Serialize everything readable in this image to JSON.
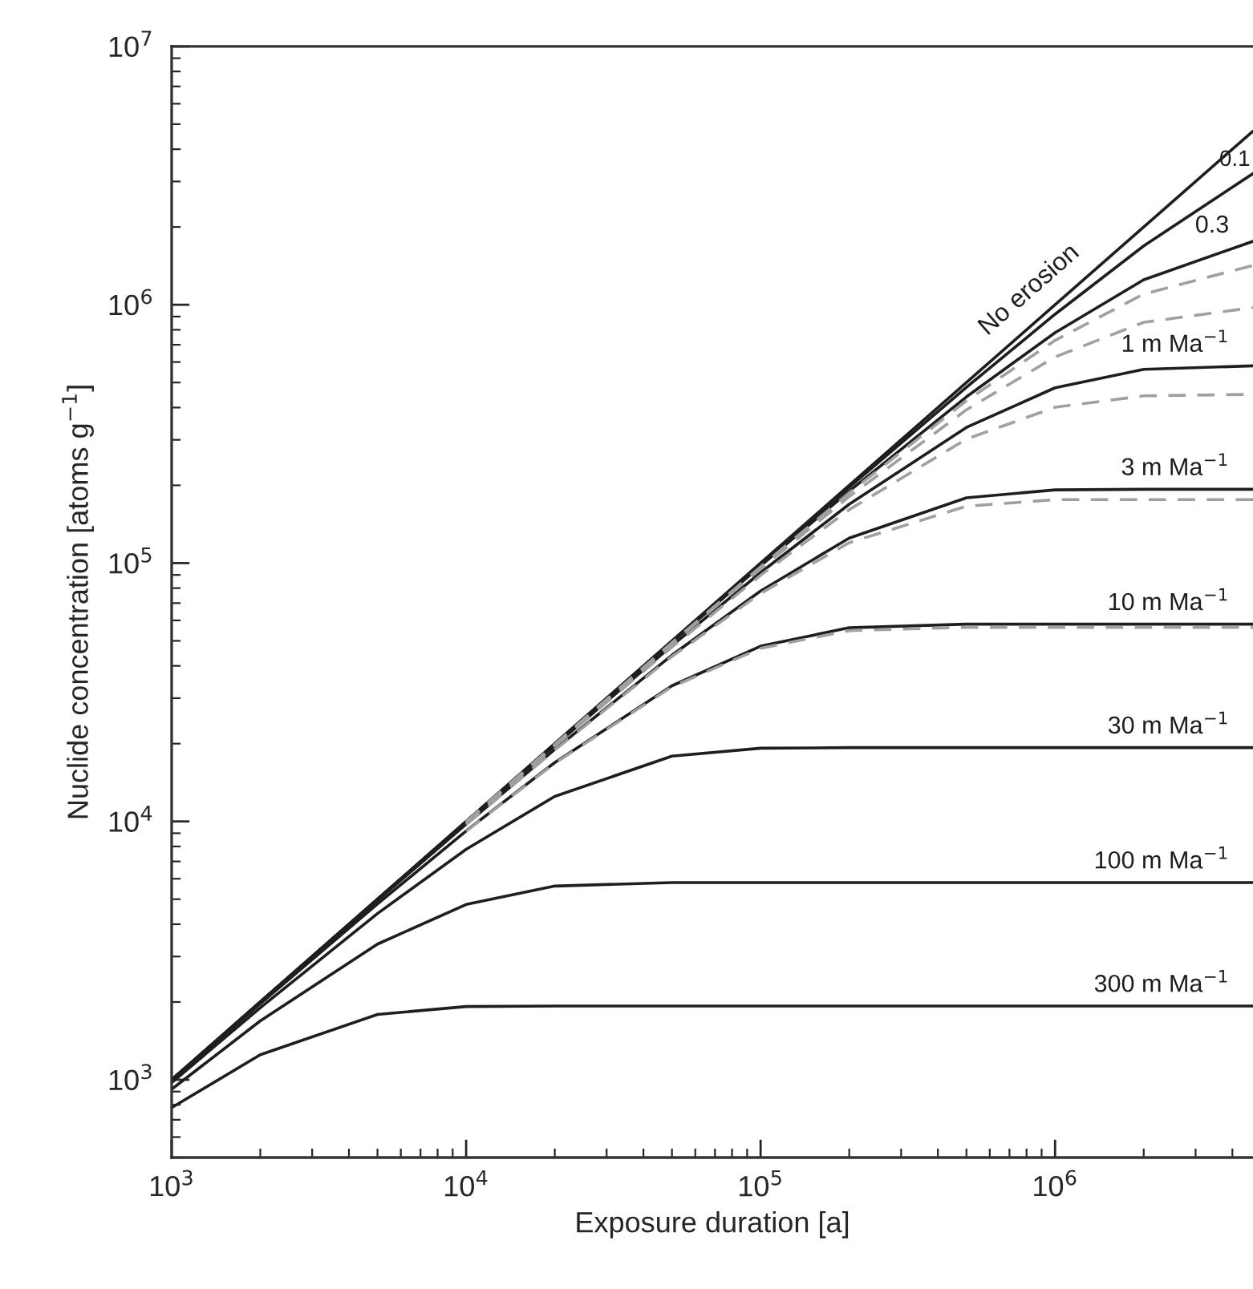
{
  "chart_data": {
    "type": "line",
    "xlabel": "Exposure duration [a]",
    "ylabel": "Nuclide concentration [atoms g$^{−1}$]",
    "log": "xy",
    "xlim": [
      1000,
      4700000
    ],
    "ylim": [
      500,
      10000000
    ],
    "xticks": [
      {
        "value": 1000,
        "label": "10$^{3}$"
      },
      {
        "value": 10000,
        "label": "10$^{4}$"
      },
      {
        "value": 100000,
        "label": "10$^{5}$"
      },
      {
        "value": 1000000,
        "label": "10$^{6}$"
      }
    ],
    "yticks": [
      {
        "value": 1000,
        "label": "10$^{3}$"
      },
      {
        "value": 10000,
        "label": "10$^{4}$"
      },
      {
        "value": 100000,
        "label": "10$^{5}$"
      },
      {
        "value": 1000000,
        "label": "10$^{6}$"
      },
      {
        "value": 10000000,
        "label": "10$^{7}$"
      }
    ],
    "grid": false,
    "x": [
      1000,
      2000,
      5000,
      10000,
      20000,
      50000,
      100000,
      200000,
      500000,
      1000000,
      2000000,
      4700000
    ],
    "series": [
      {
        "color": "#1e1e1e",
        "line_style": "solid",
        "values": [
          1000,
          2000,
          5000,
          10000,
          20000,
          50000,
          100000,
          200000,
          500000,
          1000000,
          2000000,
          4700000
        ]
      },
      {
        "color": "#1e1e1e",
        "line_style": "solid",
        "values": [
          1000,
          2000,
          5000,
          9990,
          19970,
          49800,
          99100,
          196600,
          479000,
          919000,
          1690000,
          3220000
        ]
      },
      {
        "color": "#1e1e1e",
        "line_style": "solid",
        "values": [
          1000,
          2000,
          4990,
          9970,
          19900,
          49400,
          97500,
          190000,
          440000,
          780000,
          1250000,
          1760000
        ]
      },
      {
        "color": "#1e1e1e",
        "line_style": "solid",
        "values": [
          999,
          2000,
          4980,
          9910,
          19660,
          47900,
          91900,
          169000,
          335000,
          477000,
          562000,
          580000
        ]
      },
      {
        "color": "#1e1e1e",
        "line_style": "solid",
        "values": [
          997,
          1990,
          4940,
          9750,
          19000,
          44000,
          78000,
          125000,
          179000,
          192000,
          193000,
          193000
        ]
      },
      {
        "color": "#1e1e1e",
        "line_style": "solid",
        "values": [
          991,
          1970,
          4790,
          9190,
          16900,
          33500,
          47700,
          56200,
          58000,
          58000,
          58000,
          58000
        ]
      },
      {
        "color": "#1e1e1e",
        "line_style": "solid",
        "values": [
          975,
          1900,
          4400,
          7800,
          12500,
          17900,
          19200,
          19300,
          19300,
          19300,
          19300,
          19300
        ]
      },
      {
        "color": "#1e1e1e",
        "line_style": "solid",
        "values": [
          919,
          1690,
          3350,
          4770,
          5620,
          5800,
          5800,
          5800,
          5800,
          5800,
          5800,
          5800
        ]
      },
      {
        "color": "#1e1e1e",
        "line_style": "solid",
        "values": [
          780,
          1250,
          1790,
          1920,
          1930,
          1930,
          1930,
          1930,
          1930,
          1930,
          1930,
          1930
        ]
      },
      {
        "color": "#a0a0a0",
        "line_style": "dashed",
        "x": [
          10000,
          20000,
          50000,
          100000,
          200000,
          500000,
          1000000,
          2000000,
          4700000
        ],
        "values": [
          9970,
          19870,
          49200,
          96700,
          187000,
          425000,
          728000,
          1100000,
          1420000
        ]
      },
      {
        "color": "#a0a0a0",
        "line_style": "dashed",
        "x": [
          10000,
          20000,
          50000,
          100000,
          200000,
          500000,
          1000000,
          2000000,
          4700000
        ],
        "values": [
          9950,
          19800,
          48800,
          95100,
          181000,
          392000,
          628000,
          855000,
          975000
        ]
      },
      {
        "color": "#a0a0a0",
        "line_style": "dashed",
        "x": [
          10000,
          20000,
          50000,
          100000,
          200000,
          500000,
          1000000,
          2000000,
          4700000
        ],
        "values": [
          9890,
          19570,
          47300,
          89700,
          161000,
          302000,
          401000,
          444000,
          450000
        ]
      },
      {
        "color": "#a0a0a0",
        "line_style": "dashed",
        "x": [
          10000,
          20000,
          50000,
          100000,
          200000,
          500000,
          1000000,
          2000000,
          4700000
        ],
        "values": [
          9720,
          18900,
          43500,
          76300,
          120000,
          166000,
          176000,
          176000,
          176000
        ]
      },
      {
        "color": "#a0a0a0",
        "line_style": "dashed",
        "x": [
          10000,
          20000,
          50000,
          100000,
          200000,
          500000,
          1000000,
          2000000,
          4700000
        ],
        "values": [
          9170,
          16800,
          33200,
          46800,
          54800,
          56400,
          56400,
          56400,
          56400
        ]
      }
    ],
    "annotations": [
      {
        "text": "No erosion",
        "x": 950000,
        "y": 950000
      },
      {
        "text": "0.1",
        "x": 4600000,
        "y": 3180000
      },
      {
        "text": "0.3",
        "x": 3900000,
        "y": 1680000
      },
      {
        "text": "1 m Ma$^{−1}$",
        "x": 3900000,
        "y": 580000
      },
      {
        "text": "3 m Ma$^{−1}$",
        "x": 3900000,
        "y": 193000
      },
      {
        "text": "10 m Ma$^{−1}$",
        "x": 3900000,
        "y": 58000
      },
      {
        "text": "30 m Ma$^{−1}$",
        "x": 3900000,
        "y": 19300
      },
      {
        "text": "100 m Ma$^{−1}$",
        "x": 3900000,
        "y": 5800
      },
      {
        "text": "300 m Ma$^{−1}$",
        "x": 3900000,
        "y": 1930
      }
    ]
  }
}
